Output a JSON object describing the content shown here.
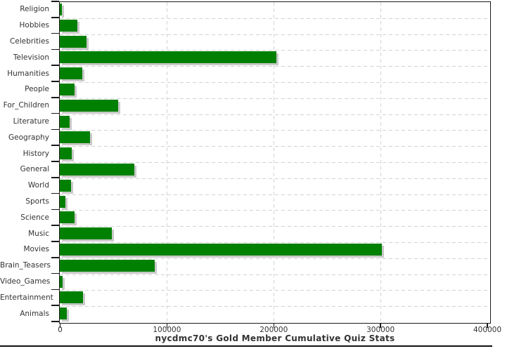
{
  "title": "nycdmc70's Gold Member Cumulative Quiz Stats",
  "chart_data": {
    "type": "bar",
    "orientation": "horizontal",
    "title": "nycdmc70's Gold Member Cumulative Quiz Stats",
    "xlabel": "",
    "ylabel": "",
    "xlim": [
      0,
      400000
    ],
    "x_ticks": [
      0,
      100000,
      200000,
      300000,
      400000
    ],
    "grid": true,
    "legend": false,
    "categories": [
      "Religion",
      "Hobbies",
      "Celebrities",
      "Television",
      "Humanities",
      "People",
      "For_Children",
      "Literature",
      "Geography",
      "History",
      "General",
      "World",
      "Sports",
      "Science",
      "Music",
      "Movies",
      "Brain_Teasers",
      "Video_Games",
      "Entertainment",
      "Animals"
    ],
    "values": [
      1800,
      16500,
      25000,
      202500,
      21000,
      13500,
      54500,
      9000,
      28000,
      11000,
      70000,
      10700,
      5500,
      13500,
      48500,
      301500,
      89000,
      2600,
      21700,
      6800
    ],
    "colors": {
      "bar": "#008000",
      "bar_shadow": "#c9c9c9",
      "grid": "#d2d2d2",
      "axis": "#1a1a1a",
      "text": "#333333"
    }
  }
}
